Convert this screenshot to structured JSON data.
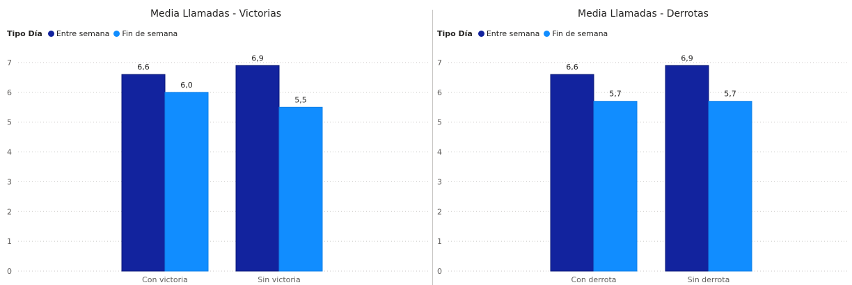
{
  "chart_data": [
    {
      "type": "bar",
      "title": "Media Llamadas - Victorias",
      "legend_title": "Tipo Día",
      "categories": [
        "Con victoria",
        "Sin victoria"
      ],
      "series": [
        {
          "name": "Entre semana",
          "color": "#12239e",
          "values": [
            6.6,
            6.9
          ],
          "labels": [
            "6,6",
            "6,9"
          ]
        },
        {
          "name": "Fin de semana",
          "color": "#118dff",
          "values": [
            6.0,
            5.5
          ],
          "labels": [
            "6,0",
            "5,5"
          ]
        }
      ],
      "yticks": [
        "0",
        "1",
        "2",
        "3",
        "4",
        "5",
        "6",
        "7"
      ],
      "ylim": [
        0,
        7
      ],
      "grid": true,
      "legend_position": "top-left"
    },
    {
      "type": "bar",
      "title": "Media Llamadas - Derrotas",
      "legend_title": "Tipo Día",
      "categories": [
        "Con derrota",
        "Sin derrota"
      ],
      "series": [
        {
          "name": "Entre semana",
          "color": "#12239e",
          "values": [
            6.6,
            6.9
          ],
          "labels": [
            "6,6",
            "6,9"
          ]
        },
        {
          "name": "Fin de semana",
          "color": "#118dff",
          "values": [
            5.7,
            5.7
          ],
          "labels": [
            "5,7",
            "5,7"
          ]
        }
      ],
      "yticks": [
        "0",
        "1",
        "2",
        "3",
        "4",
        "5",
        "6",
        "7"
      ],
      "ylim": [
        0,
        7
      ],
      "grid": true,
      "legend_position": "top-left"
    }
  ]
}
